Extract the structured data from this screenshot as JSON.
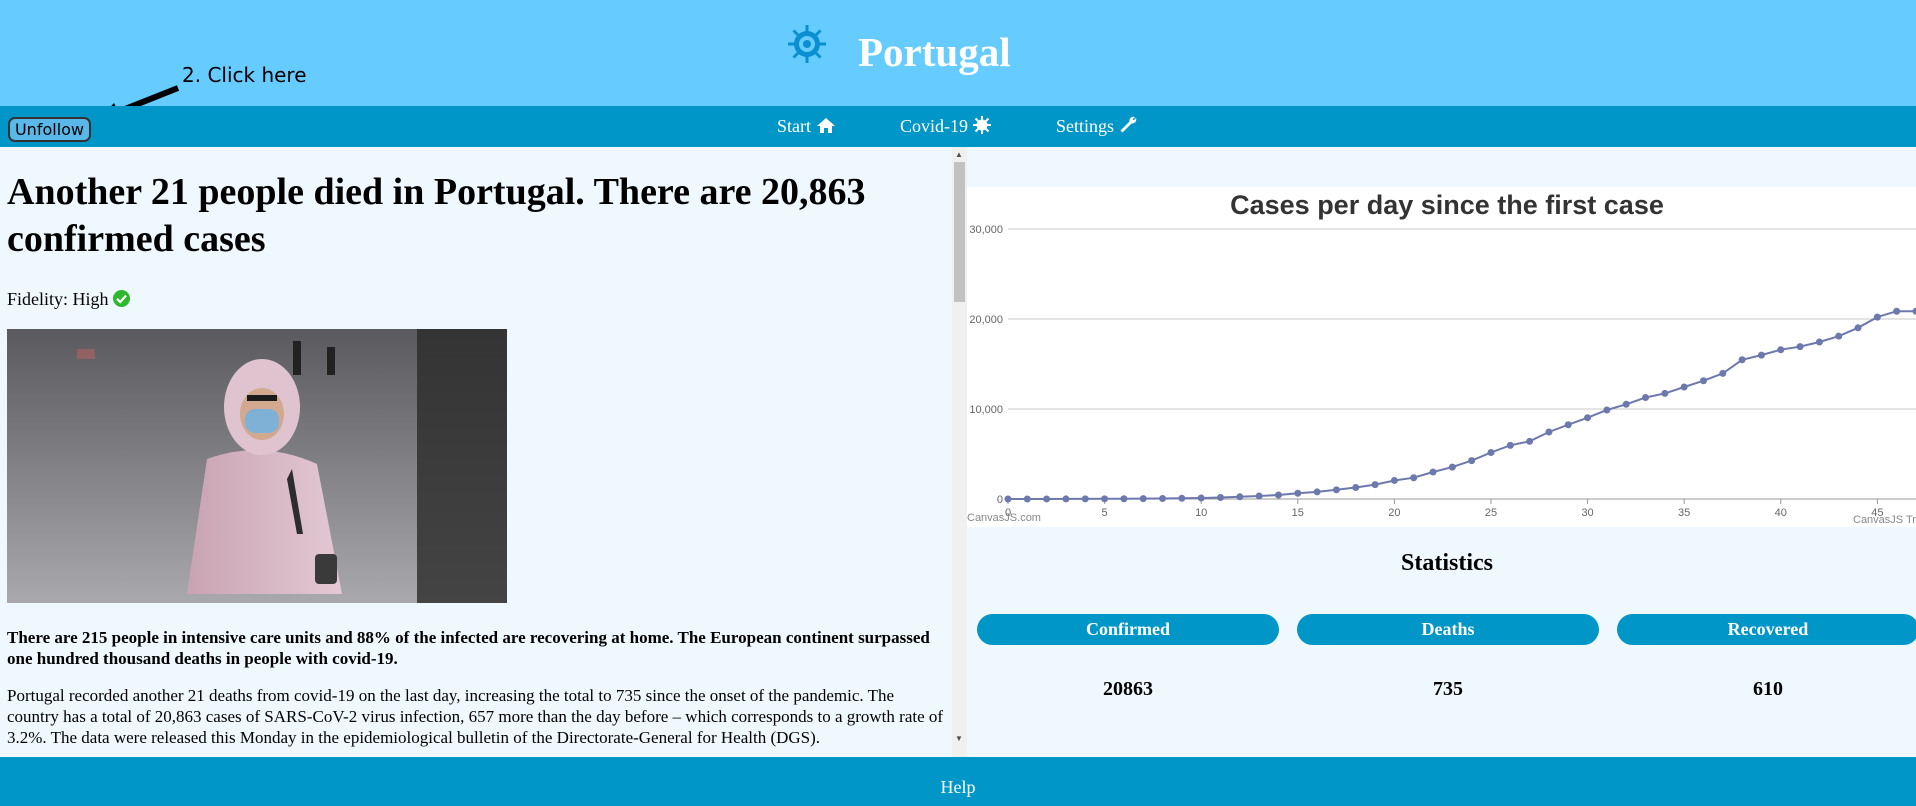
{
  "header": {
    "title": "Portugal",
    "annotation": "2. Click here"
  },
  "toolbar": {
    "unfollow_label": "Unfollow"
  },
  "nav": {
    "start": "Start",
    "covid": "Covid-19",
    "settings": "Settings"
  },
  "article": {
    "headline": "Another 21 people died in Portugal. There are 20,863 confirmed cases",
    "fidelity": "Fidelity: High",
    "summary": "There are 215 people in intensive care units and 88% of the infected are recovering at home. The European continent surpassed one hundred thousand deaths in people with covid-19.",
    "body": "Portugal recorded another 21 deaths from covid-19 on the last day, increasing the total to 735 since the onset of the pandemic. The country has a total of 20,863 cases of SARS-CoV-2 virus infection, 657 more than the day before – which corresponds to a growth rate of 3.2%. The data were released this Monday in the epidemiological bulletin of the Directorate-General for Health (DGS)."
  },
  "chart_data": {
    "type": "line",
    "title": "Cases per day since the first case",
    "credit_left": "CanvasJS.com",
    "credit_right": "CanvasJS Tr",
    "xlim": [
      0,
      47
    ],
    "ylim": [
      0,
      30000
    ],
    "x_ticks": [
      "0",
      "5",
      "10",
      "15",
      "20",
      "25",
      "30",
      "35",
      "40",
      "45"
    ],
    "y_ticks": [
      "0",
      "10,000",
      "20,000",
      "30,000"
    ],
    "series": [
      {
        "x": [
          0,
          1,
          2,
          3,
          4,
          5,
          6,
          7,
          8,
          9,
          10,
          11,
          12,
          13,
          14,
          15,
          16,
          17,
          18,
          19,
          20,
          21,
          22,
          23,
          24,
          25,
          26,
          27,
          28,
          29,
          30,
          31,
          32,
          33,
          34,
          35,
          36,
          37,
          38,
          39,
          40,
          41,
          42,
          43,
          44,
          45,
          46,
          47
        ],
        "values": [
          2,
          4,
          5,
          8,
          13,
          20,
          30,
          41,
          59,
          78,
          112,
          169,
          245,
          331,
          448,
          642,
          785,
          1020,
          1280,
          1600,
          2060,
          2362,
          2995,
          3544,
          4268,
          5170,
          5962,
          6408,
          7443,
          8251,
          9034,
          9886,
          10524,
          11278,
          11730,
          12442,
          13141,
          13956,
          15472,
          15987,
          16585,
          16934,
          17448,
          18091,
          19022,
          20206,
          20863,
          20863
        ]
      }
    ],
    "grid": true,
    "color": "#6d78ad"
  },
  "stats": {
    "heading": "Statistics",
    "confirmed_label": "Confirmed",
    "deaths_label": "Deaths",
    "recovered_label": "Recovered",
    "confirmed": "20863",
    "deaths": "735",
    "recovered": "610"
  },
  "footer": {
    "help": "Help"
  }
}
